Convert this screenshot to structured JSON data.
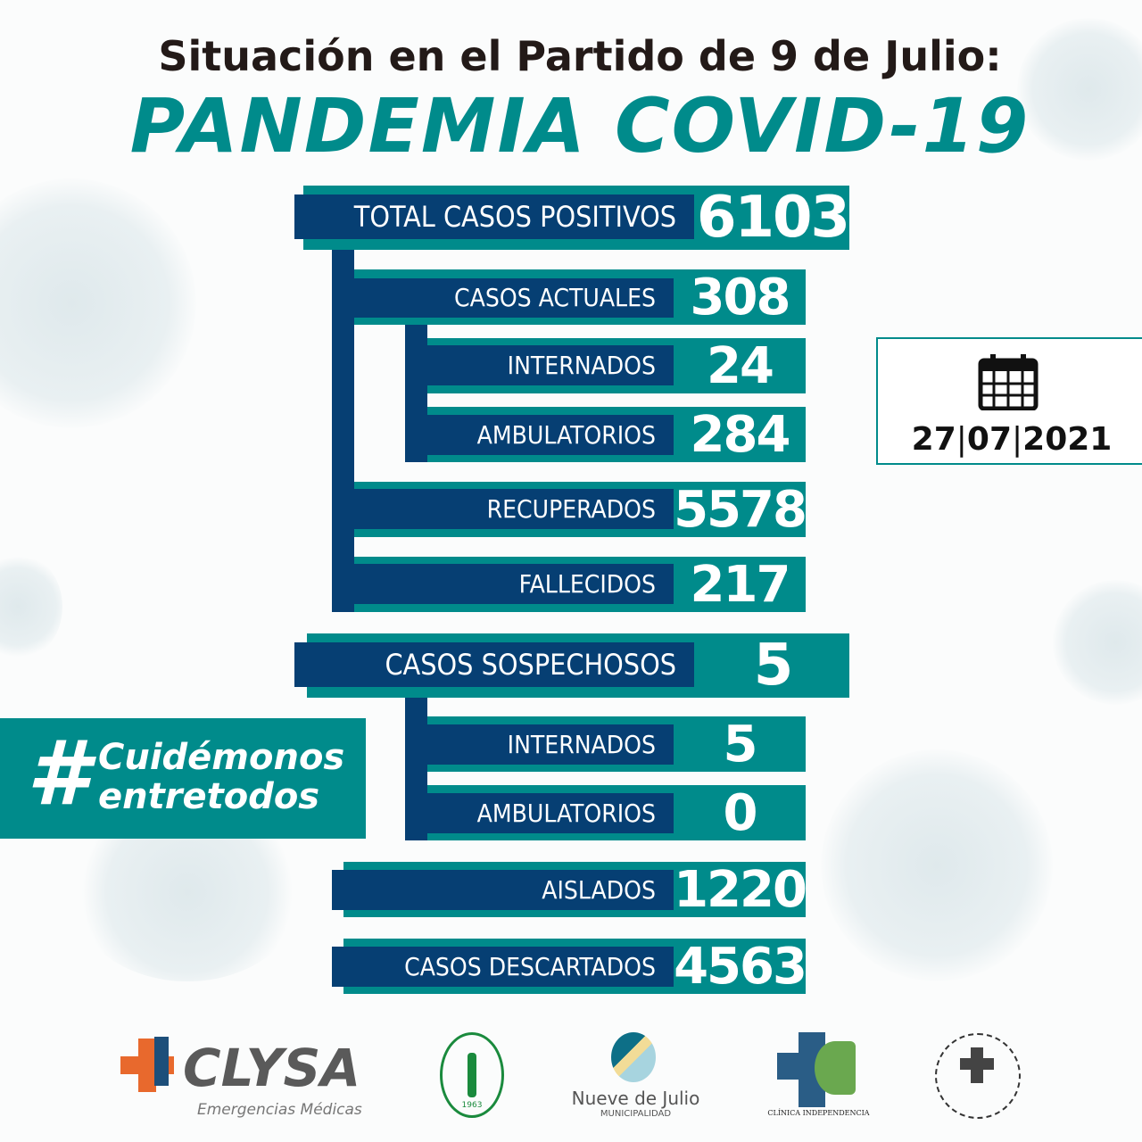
{
  "header": {
    "line1": "Situación en el Partido de 9 de Julio:",
    "line2": "PANDEMIA COVID-19"
  },
  "stats": [
    {
      "label": "TOTAL CASOS POSITIVOS",
      "value": "6103"
    },
    {
      "label": "CASOS ACTUALES",
      "value": "308"
    },
    {
      "label": "INTERNADOS",
      "value": "24"
    },
    {
      "label": "AMBULATORIOS",
      "value": "284"
    },
    {
      "label": "RECUPERADOS",
      "value": "5578"
    },
    {
      "label": "FALLECIDOS",
      "value": "217"
    },
    {
      "label": "CASOS SOSPECHOSOS",
      "value": "5"
    },
    {
      "label": "INTERNADOS",
      "value": "5"
    },
    {
      "label": "AMBULATORIOS",
      "value": "0"
    },
    {
      "label": "AISLADOS",
      "value": "1220"
    },
    {
      "label": "CASOS DESCARTADOS",
      "value": "4563"
    }
  ],
  "date": {
    "day": "27",
    "month": "07",
    "year": "2021",
    "icon": "calendar-icon"
  },
  "hashtag": {
    "symbol": "#",
    "line1": "Cuidémonos",
    "line2": "entretodos"
  },
  "logos": {
    "clysa": {
      "name": "CLYSA",
      "tagline": "Emergencias Médicas"
    },
    "circulo": {
      "year": "1963"
    },
    "municipio": {
      "name": "Nueve de Julio",
      "sub": "MUNICIPALIDAD"
    },
    "clinica": {
      "name": "CLÍNICA INDEPENDENCIA"
    }
  },
  "colors": {
    "teal": "#008b8b",
    "navy": "#063f73",
    "text": "#231a18"
  }
}
